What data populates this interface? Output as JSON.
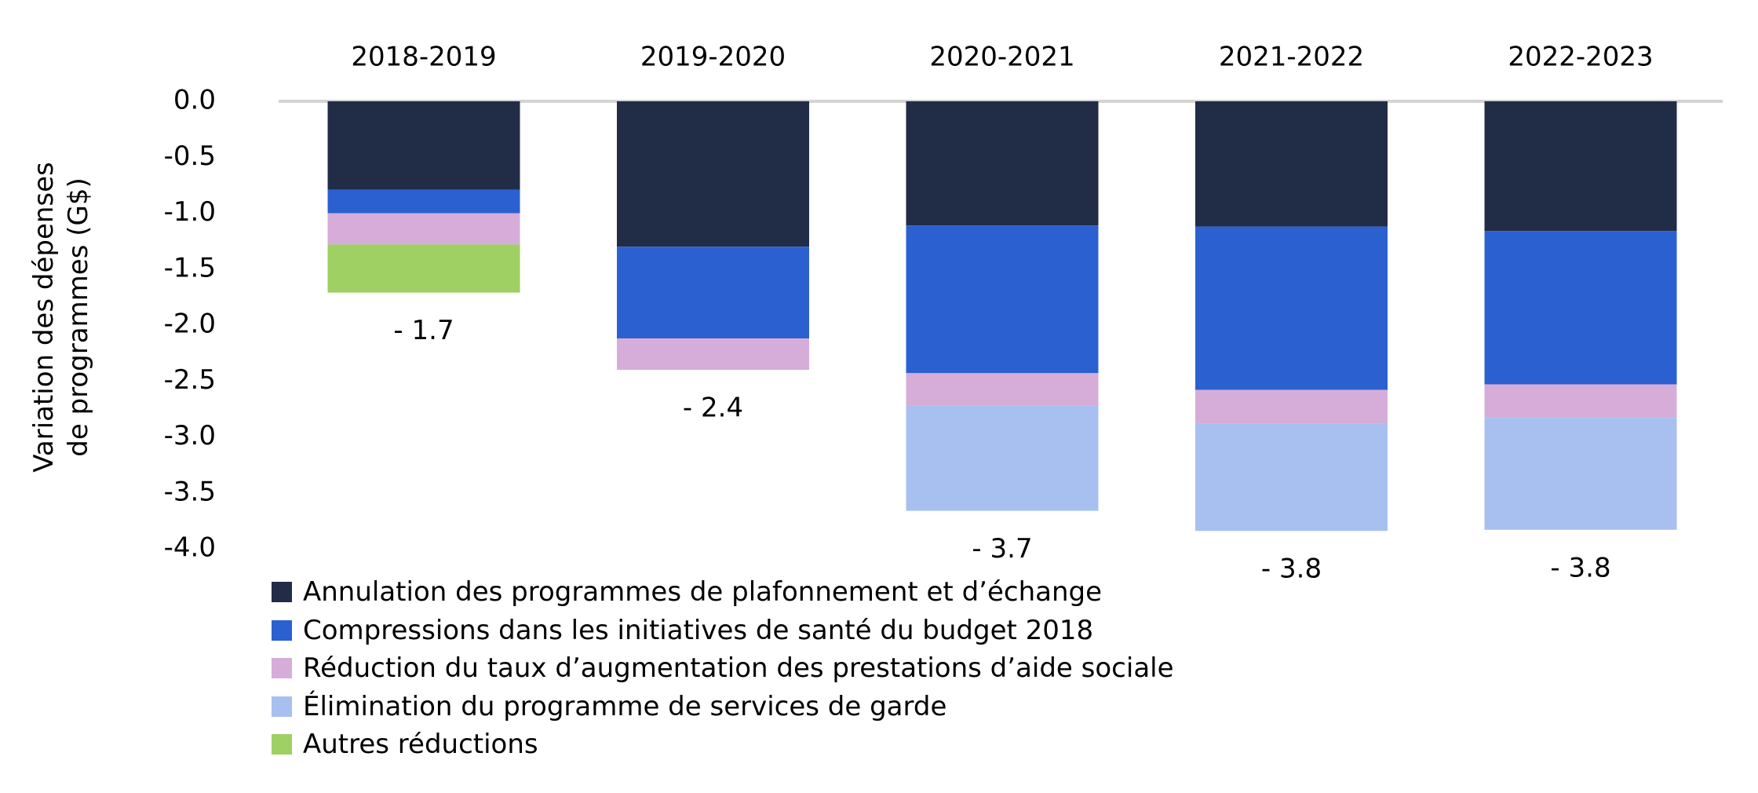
{
  "chart_data": {
    "type": "bar",
    "stacked": true,
    "ylabel_lines": [
      "Variation des dépenses",
      "de programmes (G$)"
    ],
    "ylim": [
      -4.0,
      0.0
    ],
    "yticks": [
      "0.0",
      "-0.5",
      "-1.0",
      "-1.5",
      "-2.0",
      "-2.5",
      "-3.0",
      "-3.5",
      "-4.0"
    ],
    "categories": [
      "2018-2019",
      "2019-2020",
      "2020-2021",
      "2021-2022",
      "2022-2023"
    ],
    "series": [
      {
        "name": "Annulation des programmes de plafonnement et d’échange",
        "color": "#212c47",
        "values": [
          -0.79,
          -1.3,
          -1.11,
          -1.12,
          -1.16
        ]
      },
      {
        "name": "Compressions dans les initiatives de santé du budget 2018",
        "color": "#2b60d0",
        "values": [
          -0.21,
          -0.82,
          -1.32,
          -1.46,
          -1.37
        ]
      },
      {
        "name": "Réduction du taux d’augmentation des prestations d’aide sociale",
        "color": "#d6add8",
        "values": [
          -0.28,
          -0.28,
          -0.29,
          -0.3,
          -0.3
        ]
      },
      {
        "name": "Élimination du programme de services de garde",
        "color": "#a7c0f0",
        "values": [
          0,
          0,
          -0.94,
          -0.96,
          -1.0
        ]
      },
      {
        "name": "Autres réductions",
        "color": "#9ed064",
        "values": [
          -0.43,
          0,
          0,
          0,
          0
        ]
      }
    ],
    "total_labels": [
      "- 1.7",
      "- 2.4",
      "- 3.7",
      "- 3.8",
      "- 3.8"
    ],
    "grid": false,
    "legend_position": "bottom-left"
  }
}
